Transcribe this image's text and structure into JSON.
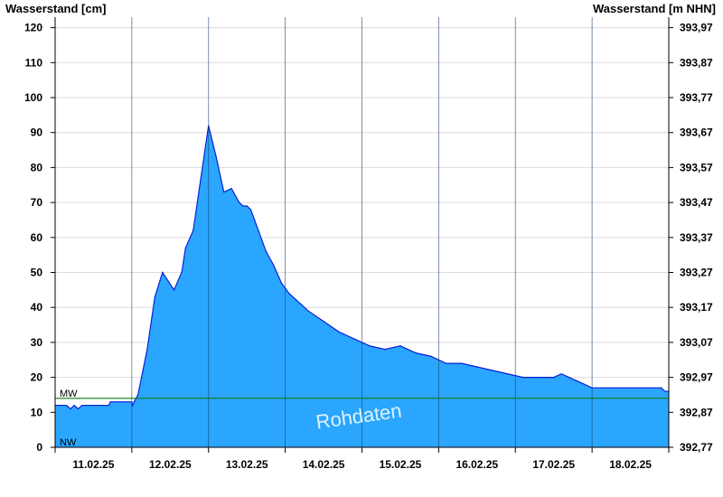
{
  "chart_data": {
    "type": "area",
    "title": "",
    "ylabel_left": "Wasserstand [cm]",
    "ylabel_right": "Wasserstand [m NHN]",
    "ylim": [
      0,
      123
    ],
    "y_ticks_left": [
      "0",
      "10",
      "20",
      "30",
      "40",
      "50",
      "60",
      "70",
      "80",
      "90",
      "100",
      "110",
      "120"
    ],
    "y_ticks_right": [
      "392,77",
      "392,87",
      "392,97",
      "393,07",
      "393,17",
      "393,27",
      "393,37",
      "393,47",
      "393,57",
      "393,67",
      "393,77",
      "393,87",
      "393,97"
    ],
    "x_range_days": [
      0,
      8
    ],
    "x_tick_labels": [
      "11.02.25",
      "12.02.25",
      "13.02.25",
      "14.02.25",
      "15.02.25",
      "16.02.25",
      "17.02.25",
      "18.02.25"
    ],
    "grid": true,
    "fill_color": "#2aa6ff",
    "line_color": "#0b1fd6",
    "reference_lines": [
      {
        "label": "MW",
        "value": 14,
        "color": "#0f7a1a"
      },
      {
        "label": "NW",
        "value": 0,
        "color": "#0f7a1a"
      }
    ],
    "annotation": "Rohdaten",
    "series": [
      {
        "x": [
          0,
          0.15,
          0.2,
          0.25,
          0.3,
          0.35,
          0.5,
          0.7,
          0.72,
          1.0,
          1.01,
          1.03,
          1.08,
          1.2,
          1.3,
          1.4,
          1.55,
          1.65,
          1.7,
          1.8,
          1.9,
          2.0,
          2.1,
          2.2,
          2.3,
          2.4,
          2.45,
          2.5,
          2.55,
          2.6,
          2.65,
          2.75,
          2.85,
          2.95,
          3.05,
          3.15,
          3.3,
          3.5,
          3.7,
          3.9,
          4.1,
          4.3,
          4.5,
          4.7,
          4.9,
          5.1,
          5.3,
          5.5,
          5.7,
          5.9,
          6.1,
          6.3,
          6.5,
          6.6,
          6.7,
          6.8,
          6.9,
          7.0,
          7.3,
          7.6,
          7.9,
          7.95,
          8.0
        ],
        "values": [
          12,
          12,
          11,
          12,
          11,
          12,
          12,
          12,
          13,
          13,
          12,
          13,
          15,
          28,
          43,
          50,
          45,
          50,
          57,
          62,
          77,
          92,
          83,
          73,
          74,
          70,
          69,
          69,
          68,
          65,
          62,
          56,
          52,
          47,
          44,
          42,
          39,
          36,
          33,
          31,
          29,
          28,
          29,
          27,
          26,
          24,
          24,
          23,
          22,
          21,
          20,
          20,
          20,
          21,
          20,
          19,
          18,
          17,
          17,
          17,
          17,
          16,
          16
        ]
      }
    ]
  }
}
